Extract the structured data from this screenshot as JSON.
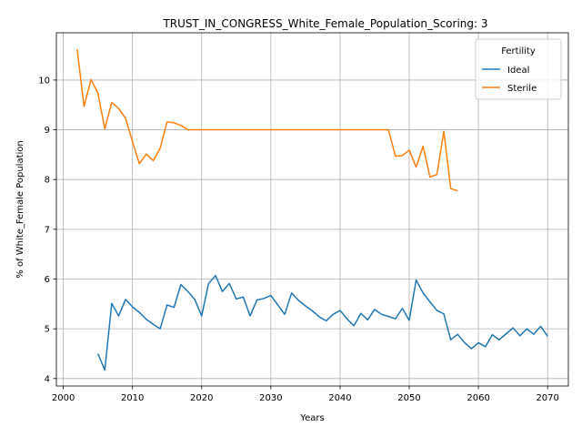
{
  "chart_data": {
    "type": "line",
    "title": "TRUST_IN_CONGRESS_White_Female_Population_Scoring: 3",
    "xlabel": "Years",
    "ylabel": "% of White_Female Population",
    "xlim": [
      1999,
      2073
    ],
    "ylim": [
      3.85,
      10.95
    ],
    "xticks": [
      2000,
      2010,
      2020,
      2030,
      2040,
      2050,
      2060,
      2070
    ],
    "yticks": [
      4,
      5,
      6,
      7,
      8,
      9,
      10
    ],
    "grid": true,
    "legend": {
      "title": "Fertility",
      "placement": "top-right"
    },
    "series": [
      {
        "name": "Ideal",
        "color": "#1f77b4",
        "x": [
          2005,
          2006,
          2007,
          2008,
          2009,
          2010,
          2011,
          2012,
          2013,
          2014,
          2015,
          2016,
          2017,
          2018,
          2019,
          2020,
          2021,
          2022,
          2023,
          2024,
          2025,
          2026,
          2027,
          2028,
          2029,
          2030,
          2031,
          2032,
          2033,
          2034,
          2035,
          2036,
          2037,
          2038,
          2039,
          2040,
          2041,
          2042,
          2043,
          2044,
          2045,
          2046,
          2047,
          2048,
          2049,
          2050,
          2051,
          2052,
          2053,
          2054,
          2055,
          2056,
          2057,
          2058,
          2059,
          2060,
          2061,
          2062,
          2063,
          2064,
          2065,
          2066,
          2067,
          2068,
          2069,
          2070
        ],
        "y": [
          4.5,
          4.17,
          5.51,
          5.26,
          5.59,
          5.44,
          5.33,
          5.19,
          5.09,
          5.0,
          5.48,
          5.43,
          5.89,
          5.75,
          5.59,
          5.26,
          5.91,
          6.07,
          5.75,
          5.91,
          5.6,
          5.64,
          5.26,
          5.58,
          5.61,
          5.67,
          5.48,
          5.29,
          5.72,
          5.57,
          5.46,
          5.36,
          5.24,
          5.16,
          5.29,
          5.37,
          5.2,
          5.06,
          5.31,
          5.18,
          5.39,
          5.29,
          5.25,
          5.2,
          5.41,
          5.17,
          5.98,
          5.72,
          5.54,
          5.37,
          5.3,
          4.78,
          4.89,
          4.72,
          4.6,
          4.72,
          4.64,
          4.88,
          4.78,
          4.9,
          5.02,
          4.86,
          5.0,
          4.89,
          5.05,
          4.85
        ]
      },
      {
        "name": "Sterile",
        "color": "#ff7f0e",
        "x": [
          2002,
          2003,
          2004,
          2005,
          2006,
          2007,
          2008,
          2009,
          2010,
          2011,
          2012,
          2013,
          2014,
          2015,
          2016,
          2017,
          2018,
          2019,
          2020,
          2021,
          2022,
          2023,
          2024,
          2025,
          2026,
          2027,
          2028,
          2029,
          2030,
          2031,
          2032,
          2033,
          2034,
          2035,
          2036,
          2037,
          2038,
          2039,
          2040,
          2041,
          2042,
          2043,
          2044,
          2045,
          2046,
          2047,
          2048,
          2049,
          2050,
          2051,
          2052,
          2053,
          2054,
          2055,
          2056,
          2057
        ],
        "y": [
          10.62,
          9.47,
          10.01,
          9.74,
          9.02,
          9.55,
          9.43,
          9.23,
          8.76,
          8.32,
          8.51,
          8.38,
          8.63,
          9.16,
          9.14,
          9.09,
          9.0,
          9.0,
          9.0,
          9.0,
          9.0,
          9.0,
          9.0,
          9.0,
          9.0,
          9.0,
          9.0,
          9.0,
          9.0,
          9.0,
          9.0,
          9.0,
          9.0,
          9.0,
          9.0,
          9.0,
          9.0,
          9.0,
          9.0,
          9.0,
          9.0,
          9.0,
          9.0,
          9.0,
          9.0,
          9.0,
          8.47,
          8.48,
          8.59,
          8.25,
          8.67,
          8.05,
          8.1,
          8.97,
          7.82,
          7.77
        ]
      }
    ]
  }
}
